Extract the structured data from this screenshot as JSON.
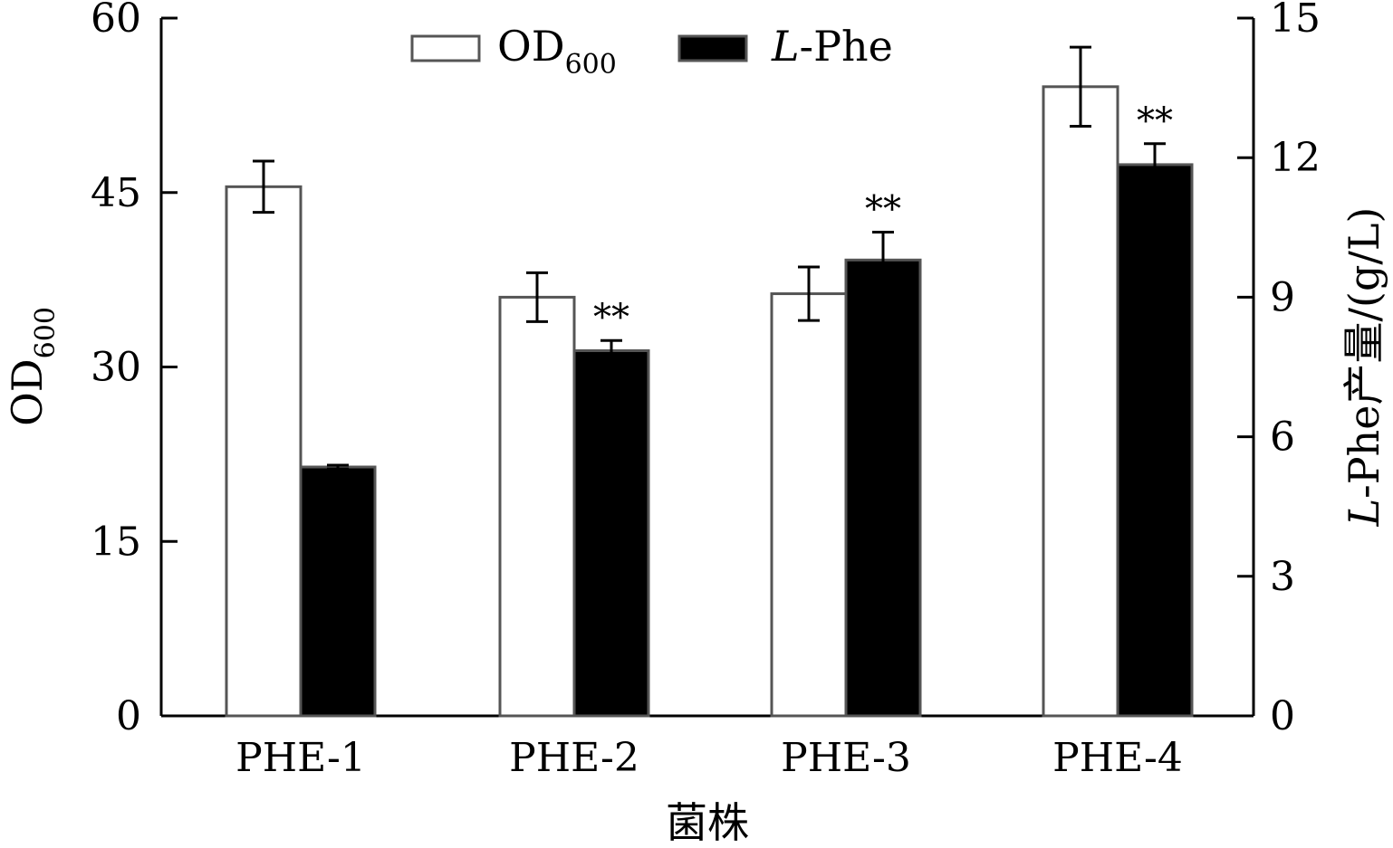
{
  "chart_data": {
    "type": "bar",
    "categories": [
      "PHE-1",
      "PHE-2",
      "PHE-3",
      "PHE-4"
    ],
    "xlabel": "菌株",
    "y_left": {
      "label_main": "OD",
      "label_sub": "600",
      "ylim": [
        0,
        60
      ],
      "ticks": [
        "0",
        "15",
        "30",
        "45",
        "60"
      ]
    },
    "y_right": {
      "label_italic": "L",
      "label_rest": "-Phe产量/(g/L)",
      "ylim": [
        0,
        15
      ],
      "ticks": [
        "0",
        "3",
        "6",
        "9",
        "12",
        "15"
      ]
    },
    "series": [
      {
        "name_main": "OD",
        "name_sub": "600",
        "axis": "left",
        "fill": "#ffffff",
        "edge": "#555555",
        "values": [
          45.5,
          36.0,
          36.3,
          54.1
        ],
        "errors": [
          2.2,
          2.1,
          2.3,
          3.4
        ],
        "significance": [
          "",
          "",
          "",
          ""
        ]
      },
      {
        "name_italic": "L",
        "name_rest": "-Phe",
        "axis": "right",
        "fill": "#000000",
        "edge": "#555555",
        "values": [
          5.35,
          7.85,
          9.8,
          11.85
        ],
        "errors": [
          0.04,
          0.22,
          0.6,
          0.45
        ],
        "significance": [
          "",
          "**",
          "**",
          "**"
        ]
      }
    ],
    "legend_position": "top-center",
    "grid": false
  }
}
